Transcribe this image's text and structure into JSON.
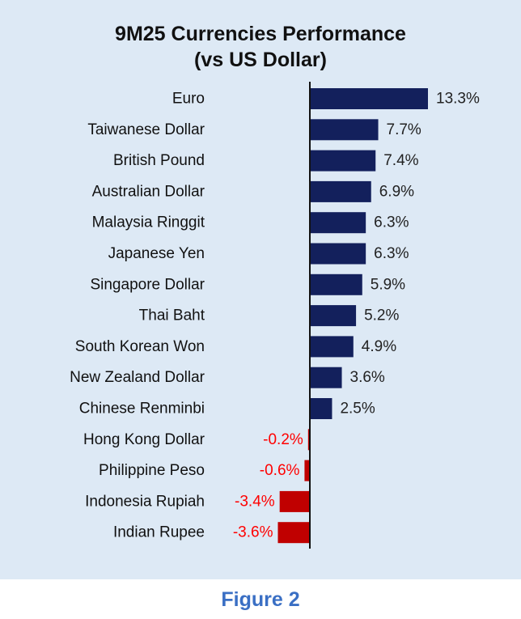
{
  "chart_data": {
    "type": "bar",
    "orientation": "horizontal",
    "title_lines": [
      "9M25 Currencies Performance",
      "(vs US Dollar)"
    ],
    "categories": [
      "Euro",
      "Taiwanese Dollar",
      "British Pound",
      "Australian Dollar",
      "Malaysia Ringgit",
      "Japanese Yen",
      "Singapore Dollar",
      "Thai Baht",
      "South Korean Won",
      "New Zealand Dollar",
      "Chinese Renminbi",
      "Hong Kong Dollar",
      "Philippine Peso",
      "Indonesia Rupiah",
      "Indian Rupee"
    ],
    "values": [
      13.3,
      7.7,
      7.4,
      6.9,
      6.3,
      6.3,
      5.9,
      5.2,
      4.9,
      3.6,
      2.5,
      -0.2,
      -0.6,
      -3.4,
      -3.6
    ],
    "value_labels": [
      "13.3%",
      "7.7%",
      "7.4%",
      "6.9%",
      "6.3%",
      "6.3%",
      "5.9%",
      "5.2%",
      "4.9%",
      "3.6%",
      "2.5%",
      "-0.2%",
      "-0.6%",
      "-3.4%",
      "-3.6%"
    ],
    "unit": "%",
    "colors": {
      "positive": "#13205c",
      "negative": "#c00000",
      "positive_label": "#222222",
      "negative_label": "#ff0000"
    },
    "grid": false
  },
  "caption": "Figure 2"
}
